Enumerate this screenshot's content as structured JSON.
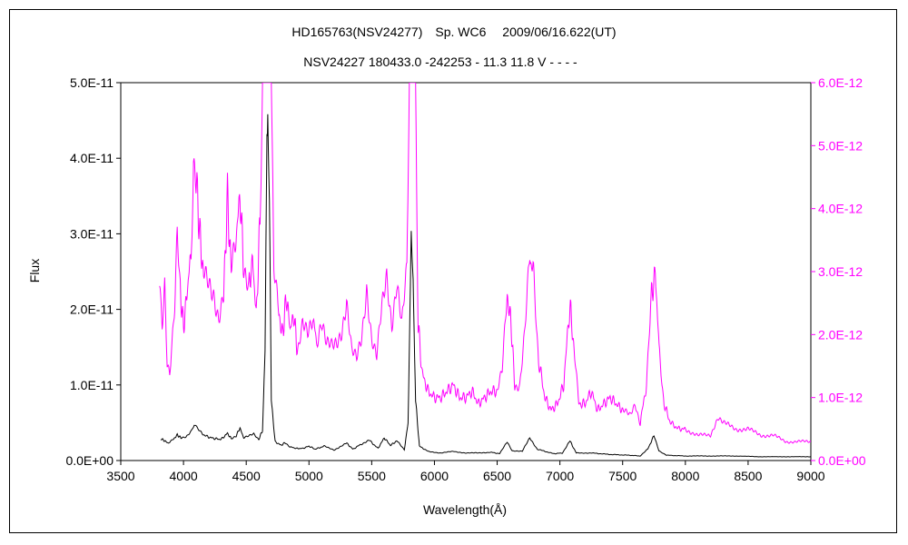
{
  "chart_data": {
    "type": "line",
    "title": "HD165763(NSV24277)　Sp. WC6　 2009/06/16.622(UT)",
    "subtitle": "NSV24227 180433.0 -242253 - 11.3 11.8 V - - - -",
    "xlabel": "Wavelength(Å)",
    "ylabel": "Flux",
    "xlim": [
      3500,
      9000
    ],
    "ylim_left": [
      0,
      5e-11
    ],
    "ylim_right": [
      0,
      6e-12
    ],
    "x_ticks": [
      "3500",
      "4000",
      "4500",
      "5000",
      "5500",
      "6000",
      "6500",
      "7000",
      "7500",
      "8000",
      "8500",
      "9000"
    ],
    "y_ticks_left": [
      "0.0E+00",
      "1.0E-11",
      "2.0E-11",
      "3.0E-11",
      "4.0E-11",
      "5.0E-11"
    ],
    "y_ticks_right": [
      "0.0E+00",
      "1.0E-12",
      "2.0E-12",
      "3.0E-12",
      "4.0E-12",
      "5.0E-12",
      "6.0E-12"
    ],
    "grid": false,
    "legend": "none",
    "series": [
      {
        "axis": "left",
        "color": "#000000",
        "points": [
          [
            3820,
            2.9e-12
          ],
          [
            3850,
            2.6e-12
          ],
          [
            3880,
            2.3e-12
          ],
          [
            3920,
            2.8e-12
          ],
          [
            3950,
            3.4e-12
          ],
          [
            3980,
            3e-12
          ],
          [
            4020,
            3.2e-12
          ],
          [
            4060,
            3.9e-12
          ],
          [
            4085,
            4.8e-12
          ],
          [
            4110,
            4.2e-12
          ],
          [
            4150,
            3.5e-12
          ],
          [
            4200,
            3.1e-12
          ],
          [
            4250,
            2.9e-12
          ],
          [
            4300,
            2.8e-12
          ],
          [
            4350,
            3.6e-12
          ],
          [
            4380,
            2.9e-12
          ],
          [
            4420,
            3.3e-12
          ],
          [
            4450,
            4.3e-12
          ],
          [
            4480,
            3e-12
          ],
          [
            4520,
            3.2e-12
          ],
          [
            4560,
            3.5e-12
          ],
          [
            4600,
            2.8e-12
          ],
          [
            4630,
            4e-12
          ],
          [
            4650,
            1.5e-11
          ],
          [
            4665,
            4.2e-11
          ],
          [
            4672,
            4.7e-11
          ],
          [
            4685,
            3.5e-11
          ],
          [
            4700,
            8e-12
          ],
          [
            4730,
            2.5e-12
          ],
          [
            4780,
            2e-12
          ],
          [
            4810,
            2.4e-12
          ],
          [
            4850,
            1.8e-12
          ],
          [
            4900,
            1.6e-12
          ],
          [
            4950,
            1.6e-12
          ],
          [
            5000,
            1.9e-12
          ],
          [
            5050,
            1.5e-12
          ],
          [
            5120,
            1.9e-12
          ],
          [
            5200,
            1.4e-12
          ],
          [
            5300,
            2.3e-12
          ],
          [
            5350,
            1.5e-12
          ],
          [
            5420,
            2.2e-12
          ],
          [
            5480,
            2.7e-12
          ],
          [
            5550,
            1.6e-12
          ],
          [
            5600,
            3e-12
          ],
          [
            5650,
            2e-12
          ],
          [
            5700,
            2.6e-12
          ],
          [
            5760,
            1.4e-12
          ],
          [
            5790,
            5e-12
          ],
          [
            5805,
            2e-11
          ],
          [
            5815,
            3e-11
          ],
          [
            5830,
            2.4e-11
          ],
          [
            5850,
            8e-12
          ],
          [
            5880,
            1.9e-12
          ],
          [
            5950,
            1.2e-12
          ],
          [
            6050,
            1e-12
          ],
          [
            6150,
            1.2e-12
          ],
          [
            6250,
            1e-12
          ],
          [
            6350,
            1e-12
          ],
          [
            6450,
            1.1e-12
          ],
          [
            6520,
            9e-13
          ],
          [
            6580,
            2.5e-12
          ],
          [
            6620,
            1.3e-12
          ],
          [
            6700,
            1.2e-12
          ],
          [
            6760,
            3e-12
          ],
          [
            6820,
            1.5e-12
          ],
          [
            6950,
            9e-13
          ],
          [
            7020,
            1e-12
          ],
          [
            7080,
            2.6e-12
          ],
          [
            7130,
            1e-12
          ],
          [
            7250,
            1e-12
          ],
          [
            7400,
            8e-13
          ],
          [
            7550,
            7e-13
          ],
          [
            7640,
            6e-13
          ],
          [
            7700,
            1.5e-12
          ],
          [
            7750,
            3.3e-12
          ],
          [
            7790,
            1.3e-12
          ],
          [
            7850,
            7e-13
          ],
          [
            8000,
            6e-13
          ],
          [
            8200,
            6e-13
          ],
          [
            8400,
            6e-13
          ],
          [
            8600,
            5e-13
          ],
          [
            8800,
            5e-13
          ],
          [
            9000,
            5e-13
          ]
        ]
      },
      {
        "axis": "right",
        "color": "#ff00ff",
        "points": [
          [
            3810,
            2.8e-12
          ],
          [
            3830,
            2.2e-12
          ],
          [
            3850,
            2.9e-12
          ],
          [
            3870,
            1.6e-12
          ],
          [
            3890,
            1.4e-12
          ],
          [
            3910,
            1.9e-12
          ],
          [
            3930,
            2.4e-12
          ],
          [
            3950,
            3.5e-12
          ],
          [
            3970,
            2.8e-12
          ],
          [
            4000,
            2.1e-12
          ],
          [
            4030,
            2.7e-12
          ],
          [
            4060,
            3.3e-12
          ],
          [
            4080,
            4.8e-12
          ],
          [
            4100,
            4.5e-12
          ],
          [
            4130,
            3.6e-12
          ],
          [
            4160,
            2.9e-12
          ],
          [
            4200,
            2.8e-12
          ],
          [
            4240,
            2.7e-12
          ],
          [
            4280,
            2.3e-12
          ],
          [
            4320,
            2.6e-12
          ],
          [
            4350,
            4.2e-12
          ],
          [
            4380,
            3e-12
          ],
          [
            4420,
            3.6e-12
          ],
          [
            4450,
            4.2e-12
          ],
          [
            4480,
            3.1e-12
          ],
          [
            4520,
            2.7e-12
          ],
          [
            4550,
            3.2e-12
          ],
          [
            4580,
            2.3e-12
          ],
          [
            4610,
            3.8e-12
          ],
          [
            4630,
            6e-12
          ],
          [
            4700,
            6e-12
          ],
          [
            4720,
            3e-12
          ],
          [
            4760,
            2.3e-12
          ],
          [
            4790,
            2e-12
          ],
          [
            4820,
            2.6e-12
          ],
          [
            4850,
            2.1e-12
          ],
          [
            4880,
            2.3e-12
          ],
          [
            4910,
            1.7e-12
          ],
          [
            4950,
            2.1e-12
          ],
          [
            4990,
            2e-12
          ],
          [
            5030,
            2.3e-12
          ],
          [
            5060,
            1.9e-12
          ],
          [
            5100,
            2.2e-12
          ],
          [
            5140,
            1.8e-12
          ],
          [
            5180,
            1.8e-12
          ],
          [
            5220,
            1.9e-12
          ],
          [
            5260,
            2.1e-12
          ],
          [
            5300,
            2.5e-12
          ],
          [
            5340,
            1.7e-12
          ],
          [
            5380,
            1.6e-12
          ],
          [
            5420,
            2e-12
          ],
          [
            5460,
            2.8e-12
          ],
          [
            5500,
            1.9e-12
          ],
          [
            5540,
            1.6e-12
          ],
          [
            5580,
            2.4e-12
          ],
          [
            5620,
            3e-12
          ],
          [
            5660,
            2.2e-12
          ],
          [
            5700,
            2.8e-12
          ],
          [
            5740,
            2.1e-12
          ],
          [
            5780,
            3e-12
          ],
          [
            5800,
            6e-12
          ],
          [
            5850,
            6e-12
          ],
          [
            5870,
            2.2e-12
          ],
          [
            5900,
            1.4e-12
          ],
          [
            5950,
            1.1e-12
          ],
          [
            6000,
            1e-12
          ],
          [
            6050,
            1e-12
          ],
          [
            6100,
            1.1e-12
          ],
          [
            6150,
            1.2e-12
          ],
          [
            6200,
            1e-12
          ],
          [
            6250,
            1e-12
          ],
          [
            6300,
            1.1e-12
          ],
          [
            6350,
            9e-13
          ],
          [
            6400,
            1e-12
          ],
          [
            6450,
            1.1e-12
          ],
          [
            6500,
            1.1e-12
          ],
          [
            6540,
            1.4e-12
          ],
          [
            6580,
            2.6e-12
          ],
          [
            6610,
            2.2e-12
          ],
          [
            6640,
            1.2e-12
          ],
          [
            6680,
            1.2e-12
          ],
          [
            6720,
            2e-12
          ],
          [
            6760,
            3.2e-12
          ],
          [
            6790,
            3e-12
          ],
          [
            6830,
            1.6e-12
          ],
          [
            6880,
            1e-12
          ],
          [
            6930,
            8e-13
          ],
          [
            6980,
            9e-13
          ],
          [
            7030,
            1.2e-12
          ],
          [
            7080,
            2.5e-12
          ],
          [
            7110,
            1.8e-12
          ],
          [
            7150,
            9e-13
          ],
          [
            7200,
            9e-13
          ],
          [
            7250,
            1.1e-12
          ],
          [
            7300,
            8e-13
          ],
          [
            7350,
            9e-13
          ],
          [
            7400,
            1e-12
          ],
          [
            7450,
            9e-13
          ],
          [
            7500,
            8e-13
          ],
          [
            7560,
            7e-13
          ],
          [
            7600,
            9e-13
          ],
          [
            7640,
            6e-13
          ],
          [
            7690,
            1.2e-12
          ],
          [
            7730,
            2.6e-12
          ],
          [
            7760,
            3e-12
          ],
          [
            7790,
            1.8e-12
          ],
          [
            7830,
            9e-13
          ],
          [
            7880,
            6e-13
          ],
          [
            7950,
            5e-13
          ],
          [
            8000,
            5e-13
          ],
          [
            8100,
            4e-13
          ],
          [
            8200,
            4e-13
          ],
          [
            8260,
            7e-13
          ],
          [
            8300,
            6e-13
          ],
          [
            8400,
            5e-13
          ],
          [
            8500,
            5e-13
          ],
          [
            8600,
            4e-13
          ],
          [
            8700,
            4e-13
          ],
          [
            8800,
            3e-13
          ],
          [
            8900,
            3e-13
          ],
          [
            9000,
            3e-13
          ]
        ]
      }
    ]
  }
}
